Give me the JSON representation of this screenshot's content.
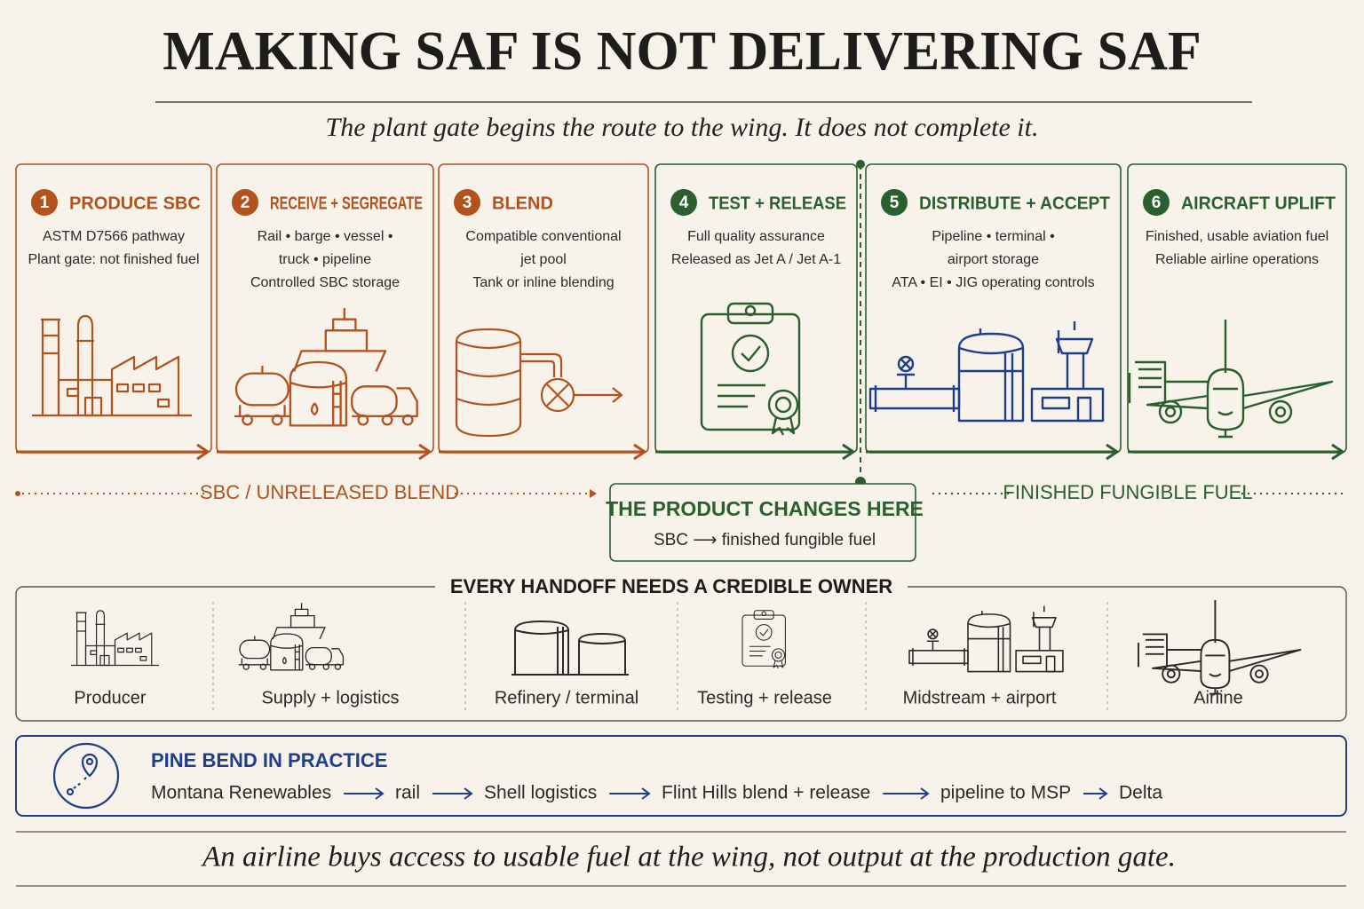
{
  "header": {
    "title": "MAKING SAF IS NOT DELIVERING SAF",
    "subtitle": "The plant gate begins the route to the wing. It does not complete it."
  },
  "steps": [
    {
      "number": "1",
      "title": "PRODUCE SBC",
      "lines": [
        "ASTM D7566 pathway",
        "Plant gate: not finished fuel"
      ]
    },
    {
      "number": "2",
      "title": "RECEIVE + SEGREGATE",
      "lines": [
        "Rail • barge • vessel •",
        "truck • pipeline",
        "Controlled SBC storage"
      ]
    },
    {
      "number": "3",
      "title": "BLEND",
      "lines": [
        "Compatible conventional",
        "jet pool",
        "Tank or inline blending"
      ]
    },
    {
      "number": "4",
      "title": "TEST + RELEASE",
      "lines": [
        "Full quality assurance",
        "Released as Jet A / Jet A-1"
      ]
    },
    {
      "number": "5",
      "title": "DISTRIBUTE + ACCEPT",
      "lines": [
        "Pipeline • terminal •",
        "airport storage",
        "ATA • EI • JIG operating controls"
      ]
    },
    {
      "number": "6",
      "title": "AIRCRAFT UPLIFT",
      "lines": [
        "Finished, usable aviation fuel",
        "Reliable airline operations"
      ]
    }
  ],
  "phases": {
    "left": "SBC / UNRELEASED BLEND",
    "right": "FINISHED FUNGIBLE FUEL"
  },
  "change": {
    "title": "THE PRODUCT CHANGES HERE",
    "text": "SBC ⟶ finished fungible fuel"
  },
  "handoff": {
    "title": "EVERY HANDOFF NEEDS A CREDIBLE OWNER",
    "owners": [
      "Producer",
      "Supply + logistics",
      "Refinery / terminal",
      "Testing + release",
      "Midstream + airport",
      "Airline"
    ]
  },
  "example": {
    "title": "PINE BEND IN PRACTICE",
    "route": [
      "Montana Renewables",
      "rail",
      "Shell logistics",
      "Flint Hills blend + release",
      "pipeline to MSP",
      "Delta"
    ]
  },
  "footer": "An airline buys access to usable fuel at the wing, not output at the production gate."
}
